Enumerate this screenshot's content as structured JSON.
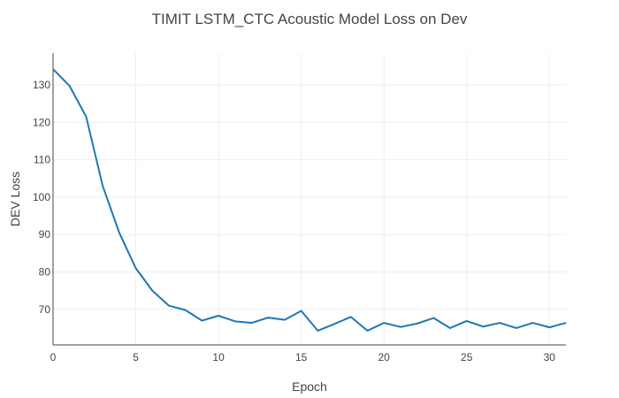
{
  "chart_data": {
    "type": "line",
    "title": "TIMIT LSTM_CTC Acoustic Model Loss on Dev",
    "xlabel": "Epoch",
    "ylabel": "DEV Loss",
    "xlim": [
      0,
      31
    ],
    "ylim": [
      60.5,
      138.5
    ],
    "xticks": [
      0,
      5,
      10,
      15,
      20,
      25,
      30
    ],
    "yticks": [
      70,
      80,
      90,
      100,
      110,
      120,
      130
    ],
    "grid": true,
    "legend": "none",
    "series": [
      {
        "color": "#1f77b4",
        "x": [
          0,
          1,
          2,
          3,
          4,
          5,
          6,
          7,
          8,
          9,
          10,
          11,
          12,
          13,
          14,
          15,
          16,
          17,
          18,
          19,
          20,
          21,
          22,
          23,
          24,
          25,
          26,
          27,
          28,
          29,
          30,
          31
        ],
        "y": [
          134.2,
          129.7,
          121.5,
          103.0,
          90.5,
          81.0,
          75.0,
          71.0,
          69.8,
          67.0,
          68.3,
          66.8,
          66.4,
          67.8,
          67.2,
          69.6,
          64.3,
          66.1,
          68.0,
          64.3,
          66.4,
          65.3,
          66.2,
          67.7,
          65.0,
          66.9,
          65.4,
          66.4,
          65.0,
          66.4,
          65.2,
          66.4
        ]
      }
    ]
  }
}
